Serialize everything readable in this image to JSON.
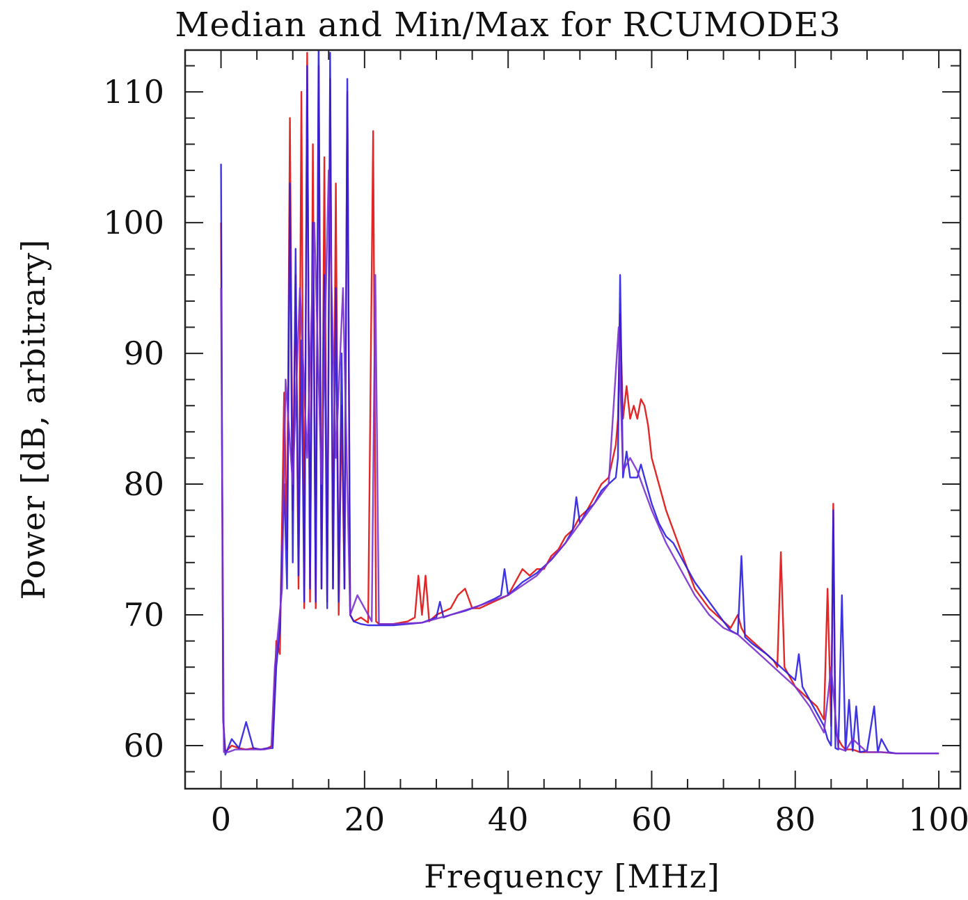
{
  "chart_data": {
    "type": "line",
    "title": "Median and Min/Max for RCUMODE3",
    "xlabel": "Frequency [MHz]",
    "ylabel": "Power [dB, arbitrary]",
    "xlim": [
      -5,
      103
    ],
    "ylim": [
      56.7,
      113.2
    ],
    "xticks": [
      0,
      20,
      40,
      60,
      80,
      100
    ],
    "yticks": [
      60,
      70,
      80,
      90,
      100,
      110
    ],
    "grid": false,
    "legend": "none",
    "series": [
      {
        "color": "#e01010",
        "x": [
          0,
          0.3,
          0.6,
          1.5,
          2.5,
          3.5,
          4.5,
          5.5,
          6.5,
          7.2,
          7.7,
          8.2,
          8.8,
          9.2,
          9.6,
          10.0,
          10.4,
          10.8,
          11.2,
          11.6,
          12.0,
          12.4,
          12.8,
          13.2,
          13.6,
          14.0,
          14.4,
          14.8,
          15.2,
          15.6,
          16.0,
          16.4,
          16.8,
          17.2,
          17.6,
          18.0,
          18.5,
          19.5,
          20.5,
          21.2,
          21.6,
          22.0,
          23,
          24,
          26,
          27,
          27.5,
          28,
          28.5,
          29,
          30,
          32,
          33,
          34,
          35,
          36,
          38,
          40,
          41,
          42,
          43,
          44,
          45,
          46,
          47,
          48,
          49,
          50,
          51,
          52,
          53,
          54,
          55,
          55.3,
          55.6,
          56,
          56.5,
          57,
          57.5,
          58,
          58.5,
          59,
          59.5,
          60,
          61,
          62,
          63,
          64,
          65,
          66,
          68,
          70,
          71,
          72,
          72.5,
          73,
          74,
          76,
          77,
          77.5,
          78,
          78.5,
          79,
          80,
          81,
          82,
          83,
          84,
          84.5,
          85,
          85.3,
          85.6,
          86,
          86.5,
          87,
          88,
          89,
          90,
          91,
          92,
          94,
          96,
          98,
          100
        ],
        "y": [
          100.0,
          62.0,
          59.5,
          60.0,
          59.8,
          59.7,
          59.8,
          59.7,
          59.8,
          60.0,
          68.0,
          67.0,
          87.0,
          75.0,
          108.0,
          78.0,
          96.0,
          72.0,
          110.0,
          70.5,
          113.0,
          71.0,
          106.0,
          70.5,
          112.0,
          72.0,
          105.0,
          71.0,
          111.0,
          72.0,
          103.0,
          70.0,
          86.0,
          72.0,
          110.0,
          70.0,
          69.5,
          69.8,
          69.4,
          107.0,
          69.5,
          69.3,
          69.3,
          69.3,
          69.5,
          69.8,
          73.0,
          70.0,
          73.0,
          69.5,
          70.0,
          70.5,
          71.5,
          72.0,
          70.5,
          70.5,
          71.0,
          71.5,
          72.5,
          73.5,
          73.0,
          73.5,
          73.5,
          74.5,
          75.0,
          76.0,
          76.5,
          77.5,
          78.0,
          79.0,
          80.0,
          80.5,
          83.0,
          85.0,
          93.0,
          85.0,
          87.5,
          85.0,
          86.0,
          85.0,
          86.5,
          86.0,
          84.5,
          82.0,
          80.0,
          78.0,
          76.5,
          75.0,
          73.5,
          72.0,
          70.5,
          69.5,
          69.0,
          70.0,
          69.0,
          68.5,
          68.0,
          67.0,
          66.5,
          66.0,
          74.8,
          66.0,
          65.5,
          64.5,
          64.0,
          63.5,
          63.0,
          62.0,
          72.0,
          61.5,
          78.5,
          61.0,
          60.5,
          60.0,
          59.7,
          59.7,
          59.5,
          59.5,
          59.5,
          59.5,
          59.4,
          59.4,
          59.4,
          59.4
        ]
      },
      {
        "color": "#2a1ee0",
        "x": [
          0,
          0.3,
          0.6,
          1.5,
          2.5,
          3.5,
          4.5,
          5.5,
          6.5,
          7.2,
          7.7,
          8.2,
          8.8,
          9.2,
          9.6,
          10.0,
          10.4,
          10.8,
          11.2,
          11.6,
          12.0,
          12.4,
          12.8,
          13.2,
          13.6,
          14.0,
          14.4,
          14.8,
          15.2,
          15.6,
          16.0,
          16.4,
          16.8,
          17.2,
          17.6,
          18.0,
          18.5,
          19.5,
          20.5,
          21.2,
          21.6,
          22.0,
          23,
          24,
          26,
          28,
          30,
          30.5,
          31,
          32,
          34,
          36,
          38,
          39,
          39.5,
          40,
          41,
          42,
          44,
          46,
          48,
          49,
          49.5,
          50,
          51,
          52,
          53,
          54,
          55,
          55.3,
          55.6,
          56,
          56.5,
          57,
          57.5,
          58,
          58.5,
          59,
          59.5,
          60,
          61,
          62,
          63,
          64,
          65,
          66,
          68,
          70,
          71,
          72,
          72.5,
          73,
          74,
          76,
          78,
          79,
          80,
          80.5,
          81,
          82,
          83,
          84,
          84.5,
          85,
          85.3,
          85.6,
          86,
          86.5,
          87,
          87.5,
          88,
          88.5,
          89,
          90,
          91,
          91.5,
          92,
          93,
          94,
          96,
          98,
          100
        ],
        "y": [
          104.5,
          62.0,
          59.3,
          60.5,
          59.8,
          61.8,
          59.8,
          59.7,
          59.8,
          59.8,
          66.0,
          69.0,
          80.0,
          72.0,
          103.0,
          74.0,
          98.0,
          73.0,
          91.0,
          71.0,
          112.0,
          72.0,
          100.0,
          71.0,
          114.0,
          72.0,
          96.0,
          70.5,
          113.0,
          72.0,
          95.0,
          71.0,
          90.0,
          72.0,
          111.0,
          70.0,
          69.5,
          69.3,
          69.2,
          69.2,
          69.2,
          69.2,
          69.2,
          69.2,
          69.3,
          69.4,
          69.8,
          71.0,
          69.8,
          70.0,
          70.3,
          70.7,
          71.2,
          71.5,
          73.5,
          71.5,
          72.0,
          72.5,
          73.2,
          74.2,
          75.5,
          76.5,
          79.0,
          77.0,
          78.0,
          78.5,
          79.5,
          80.0,
          80.5,
          82.0,
          96.0,
          80.5,
          82.5,
          80.5,
          80.5,
          80.5,
          81.5,
          80.5,
          79.5,
          78.5,
          77.0,
          76.0,
          75.5,
          74.5,
          73.5,
          72.5,
          71.0,
          69.5,
          68.8,
          68.5,
          74.5,
          68.3,
          67.8,
          67.0,
          66.0,
          65.5,
          65.0,
          67.0,
          64.5,
          63.5,
          62.5,
          61.5,
          60.5,
          60.0,
          78.0,
          59.8,
          59.7,
          71.5,
          59.6,
          63.5,
          59.6,
          63.0,
          59.5,
          59.6,
          63.0,
          59.5,
          60.5,
          59.5,
          59.4,
          59.4,
          59.4,
          59.4
        ]
      },
      {
        "color": "#7a30d0",
        "x": [
          0,
          0.4,
          1,
          2,
          3,
          4,
          5,
          6,
          7,
          7.5,
          8.5,
          9,
          10,
          11,
          12,
          13,
          14,
          15,
          16,
          17,
          18,
          19,
          20,
          21,
          21.5,
          22,
          24,
          28,
          32,
          36,
          40,
          44,
          48,
          50,
          52,
          54,
          55.4,
          56,
          57,
          58,
          59,
          60,
          62,
          64,
          66,
          68,
          70,
          72,
          74,
          76,
          78,
          80,
          82,
          84,
          85,
          86,
          87,
          88,
          90,
          92,
          94,
          96,
          98,
          100
        ],
        "y": [
          95.0,
          59.5,
          59.5,
          59.7,
          59.7,
          59.7,
          59.7,
          59.7,
          59.8,
          66.0,
          72.0,
          88.0,
          80.0,
          95.0,
          82.0,
          100.0,
          80.0,
          104.0,
          82.0,
          95.0,
          70.0,
          71.5,
          70.5,
          69.5,
          96.0,
          69.3,
          69.3,
          69.4,
          70.0,
          70.7,
          71.5,
          73.0,
          75.5,
          77.0,
          78.5,
          80.0,
          92.0,
          81.0,
          82.0,
          81.0,
          79.5,
          78.0,
          75.5,
          73.5,
          71.5,
          70.0,
          69.0,
          68.5,
          67.5,
          66.5,
          65.5,
          64.5,
          63.0,
          61.0,
          66.0,
          59.8,
          59.6,
          60.5,
          59.5,
          59.5,
          59.4,
          59.4,
          59.4,
          59.4
        ]
      }
    ]
  }
}
